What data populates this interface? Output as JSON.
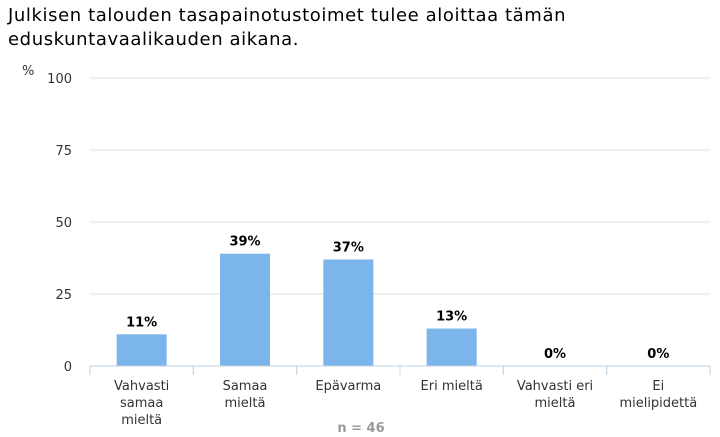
{
  "chart_data": {
    "type": "bar",
    "title": "Julkisen talouden tasapainotustoimet tulee aloittaa tämän eduskuntavaalikauden aikana.",
    "ylabel": "%",
    "xlabel": "",
    "ylim": [
      0,
      100
    ],
    "yticks": [
      0,
      25,
      50,
      75,
      100
    ],
    "categories": [
      [
        "Vahvasti",
        "samaa",
        "mieltä"
      ],
      [
        "Samaa",
        "mieltä"
      ],
      [
        "Epävarma"
      ],
      [
        "Eri mieltä"
      ],
      [
        "Vahvasti eri",
        "mieltä"
      ],
      [
        "Ei",
        "mielipidettä"
      ]
    ],
    "values": [
      11,
      39,
      37,
      13,
      0,
      0
    ],
    "data_labels": [
      "11%",
      "39%",
      "37%",
      "13%",
      "0%",
      "0%"
    ],
    "note": "n = 46",
    "grid": true,
    "bar_color": "#7cb5ec"
  }
}
